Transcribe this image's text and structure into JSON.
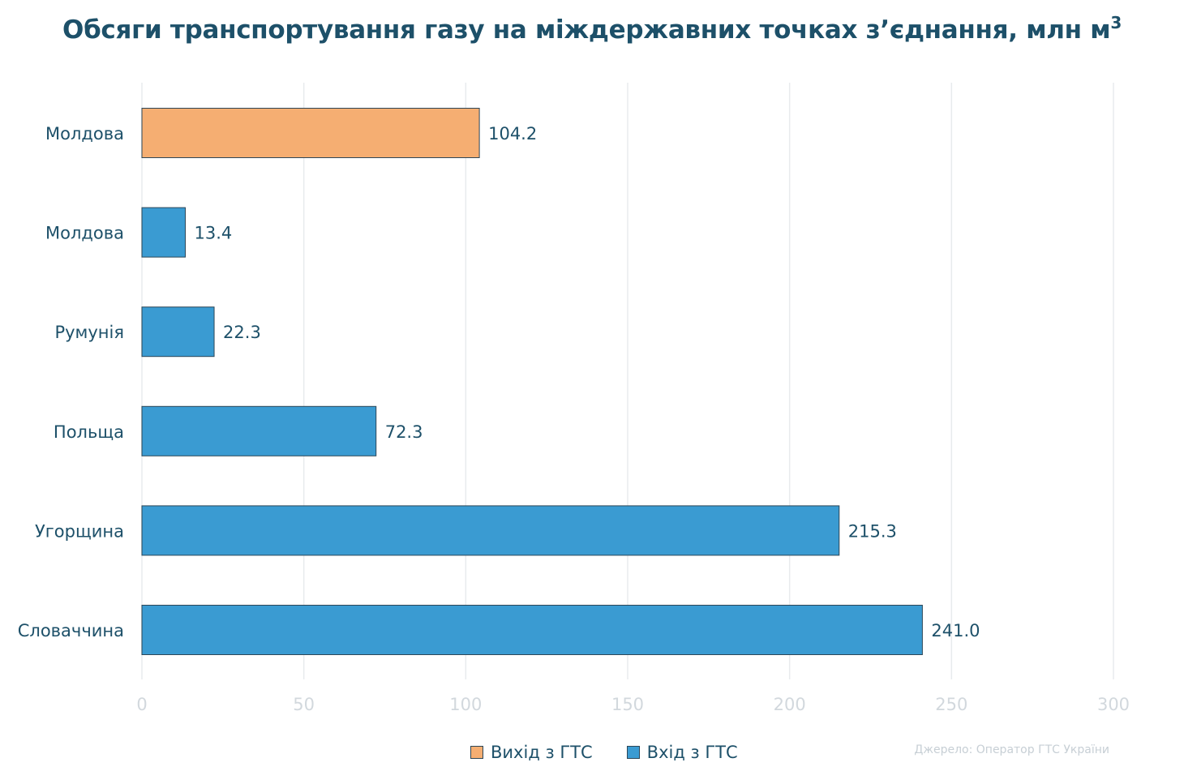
{
  "title": "Обсяги транспортування газу на міждержавних точках з’єднання, млн м",
  "title_sup": "3",
  "source": "Джерело: Оператор ГТС України",
  "legend": [
    {
      "label": "Вихід з ГТС",
      "color": "#f5ae72"
    },
    {
      "label": "Вхід з ГТС",
      "color": "#3a9bd2"
    }
  ],
  "chart_data": {
    "type": "bar",
    "orientation": "horizontal",
    "categories": [
      "Молдова",
      "Молдова",
      "Румунія",
      "Польща",
      "Угорщина",
      "Словаччина"
    ],
    "values": [
      104.2,
      13.4,
      22.3,
      72.3,
      215.3,
      241.0
    ],
    "value_labels": [
      "104.2",
      "13.4",
      "22.3",
      "72.3",
      "215.3",
      "241.0"
    ],
    "bar_series": [
      "Вихід з ГТС",
      "Вхід з ГТС",
      "Вхід з ГТС",
      "Вхід з ГТС",
      "Вхід з ГТС",
      "Вхід з ГТС"
    ],
    "xlim": [
      0,
      300
    ],
    "xticks": [
      0,
      50,
      100,
      150,
      200,
      250,
      300
    ],
    "grid": "vertical",
    "legend_position": "bottom"
  }
}
